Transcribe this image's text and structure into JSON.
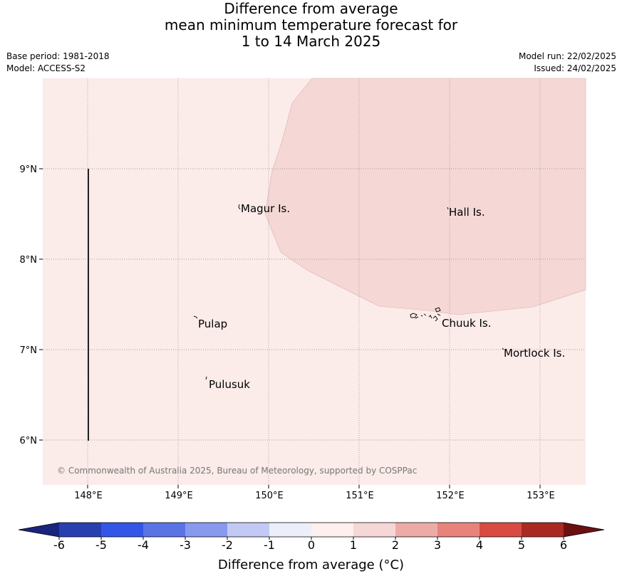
{
  "title": {
    "line1": "Difference from average",
    "line2": "mean minimum temperature forecast for",
    "line3": "1 to 14 March 2025"
  },
  "info_left": {
    "base_period": "Base period: 1981-2018",
    "model": "Model: ACCESS-S2"
  },
  "info_right": {
    "model_run": "Model run: 22/02/2025",
    "issued": "Issued: 24/02/2025"
  },
  "map": {
    "lon_ticks": [
      "148°E",
      "149°E",
      "150°E",
      "151°E",
      "152°E",
      "153°E"
    ],
    "lat_ticks": [
      "9°N",
      "8°N",
      "7°N",
      "6°N"
    ],
    "places": [
      {
        "name": "Magur Is."
      },
      {
        "name": "Hall Is."
      },
      {
        "name": "Pulap"
      },
      {
        "name": "Chuuk Is."
      },
      {
        "name": "Mortlock Is."
      },
      {
        "name": "Pulusuk"
      }
    ],
    "copyright": "© Commonwealth of Australia 2025, Bureau of Meteorology, supported by COSPPac",
    "background_category": "0 to 1",
    "background_color": "#fbebe9",
    "anomaly_region_category": "1 to 2",
    "anomaly_region_color": "#f5d7d6"
  },
  "colorbar": {
    "title": "Difference from average (°C)",
    "tick_labels": [
      "-6",
      "-5",
      "-4",
      "-3",
      "-2",
      "-1",
      "0",
      "1",
      "2",
      "3",
      "4",
      "5",
      "6"
    ],
    "colors": [
      "#1a237e",
      "#283fb0",
      "#3355e8",
      "#5a74e6",
      "#8899ee",
      "#c2c9f4",
      "#eceef9",
      "#fdf0ef",
      "#f5d7d6",
      "#edaba7",
      "#e8837c",
      "#d84a42",
      "#a82a22",
      "#6b1010"
    ]
  }
}
